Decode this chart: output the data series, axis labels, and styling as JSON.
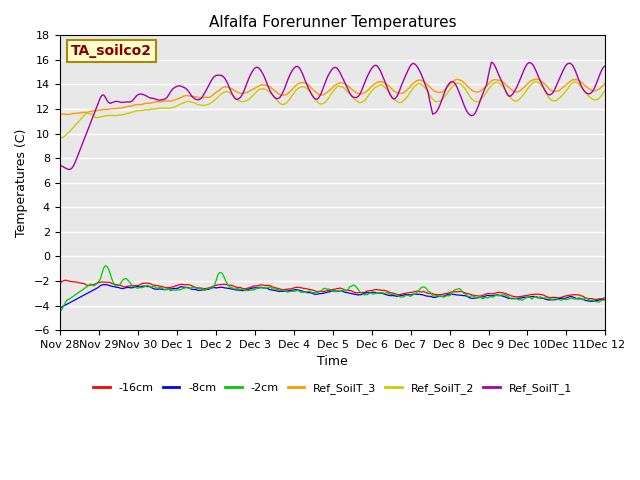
{
  "title": "Alfalfa Forerunner Temperatures",
  "xlabel": "Time",
  "ylabel": "Temperatures (C)",
  "ylim": [
    -6,
    18
  ],
  "yticks": [
    -6,
    -4,
    -2,
    0,
    2,
    4,
    6,
    8,
    10,
    12,
    14,
    16,
    18
  ],
  "annotation_text": "TA_soilco2",
  "annotation_color": "#880000",
  "annotation_bg": "#ffffcc",
  "annotation_border": "#aa8800",
  "bg_color": "#e8e8e8",
  "colors": {
    "m16cm": "#ff0000",
    "m8cm": "#0000ff",
    "m2cm": "#00cc00",
    "ref3": "#ff9900",
    "ref2": "#cccc00",
    "ref1": "#aa00aa"
  },
  "legend_labels": [
    "-16cm",
    "-8cm",
    "-2cm",
    "Ref_SoilT_3",
    "Ref_SoilT_2",
    "Ref_SoilT_1"
  ],
  "xtick_labels": [
    "Nov 28",
    "Nov 29",
    "Nov 30",
    "Dec 1",
    "Dec 2",
    "Dec 3",
    "Dec 4",
    "Dec 5",
    "Dec 6",
    "Dec 7",
    "Dec 8",
    "Dec 9",
    "Dec 10",
    "Dec 11",
    "Dec 12"
  ],
  "n_points": 336
}
